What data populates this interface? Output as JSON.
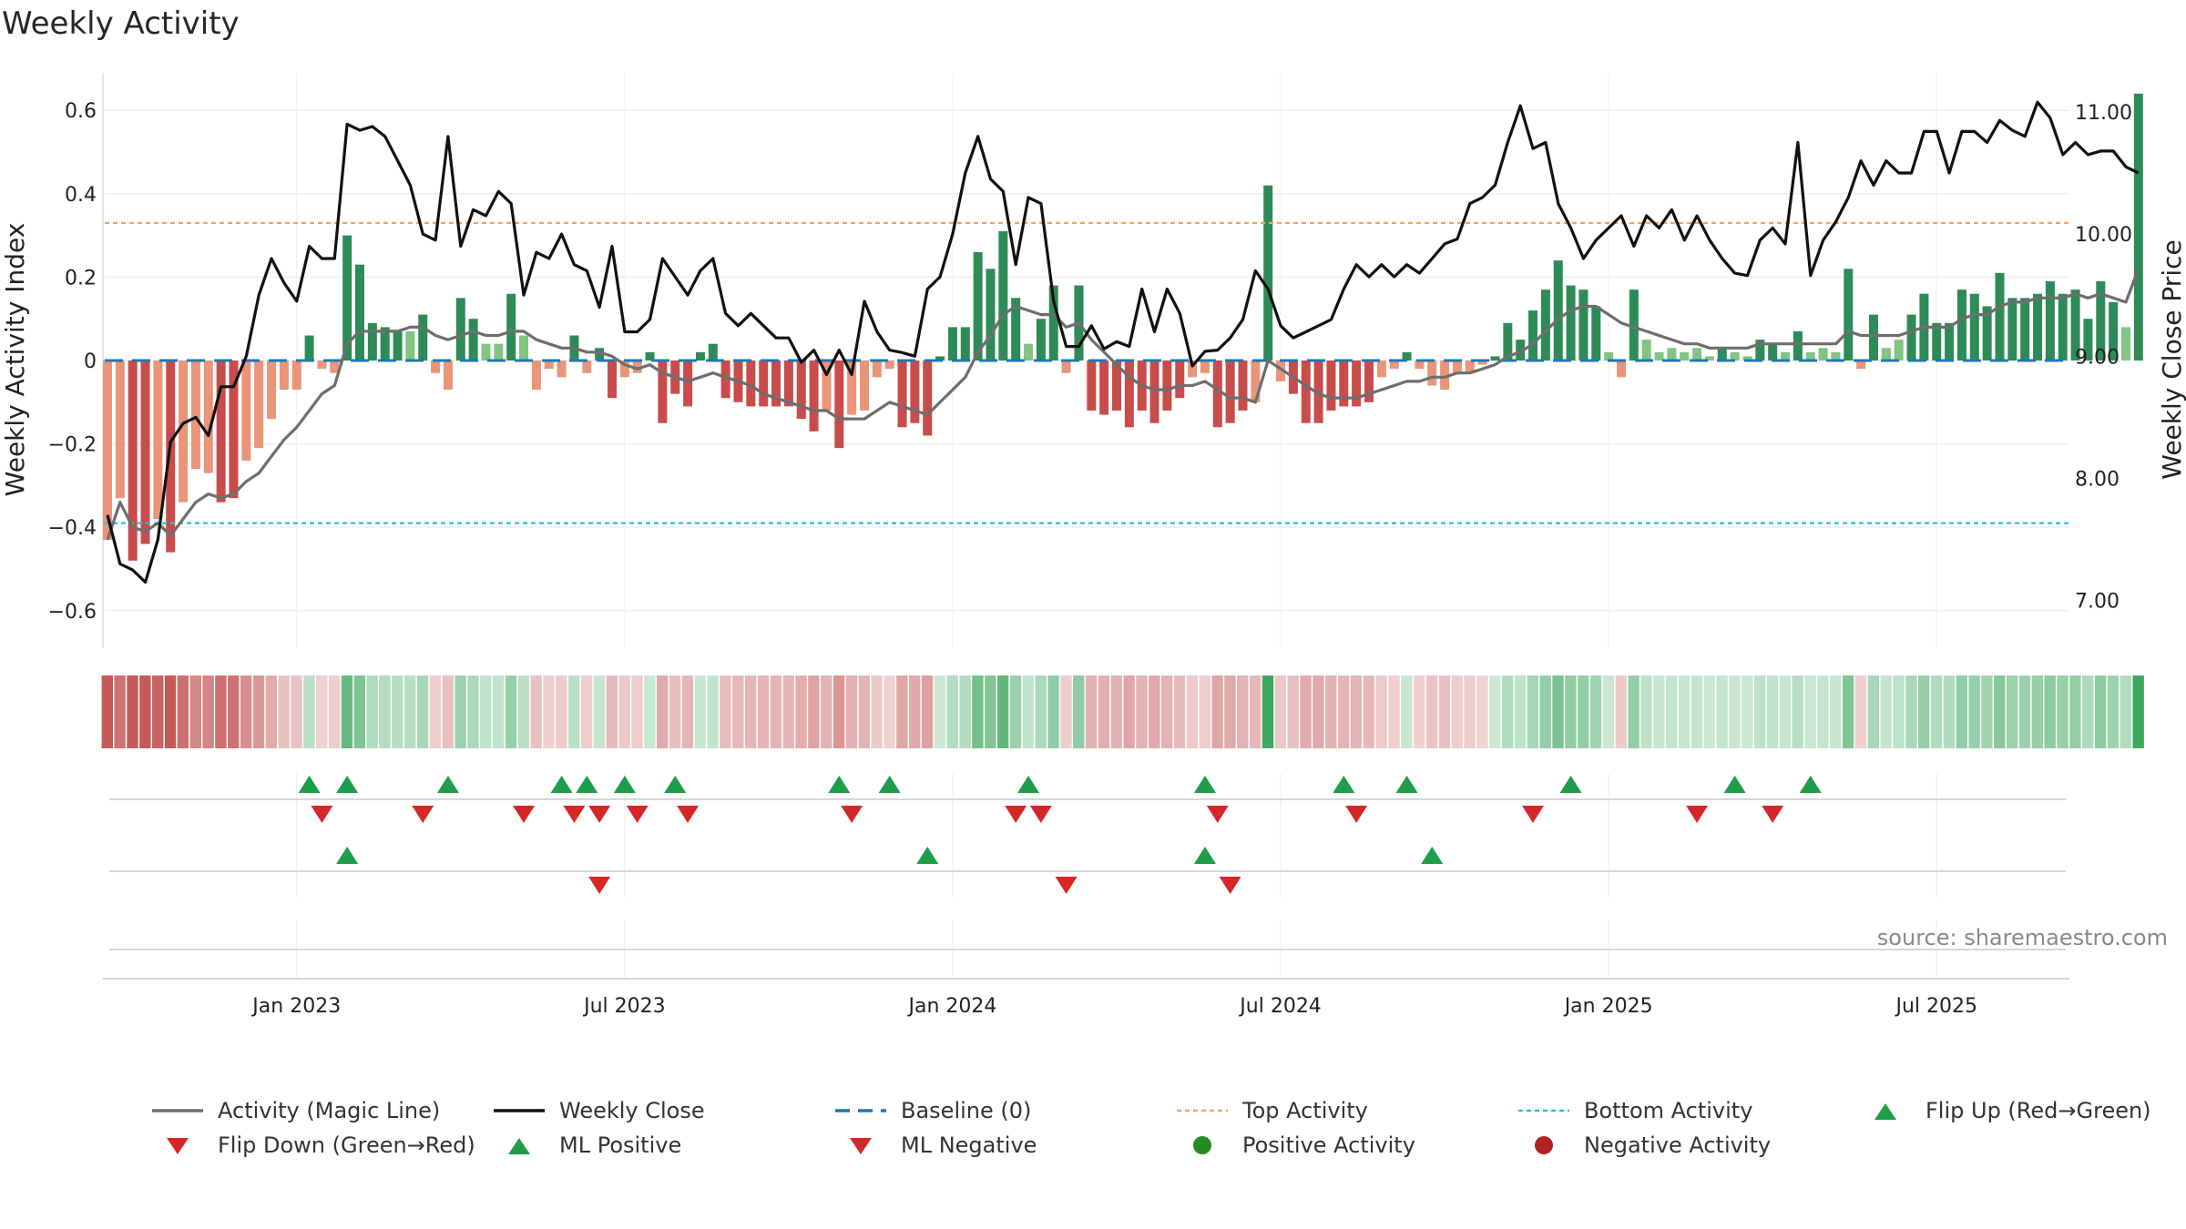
{
  "title": "Weekly Activity",
  "source": "source: sharemaestro.com",
  "colors": {
    "dark_green": "#2e8b57",
    "light_green": "#82c482",
    "dark_red": "#c84c4c",
    "light_red": "#e8957a",
    "magic_line": "#6e6e6e",
    "close_line": "#111111",
    "baseline": "#1f77b4",
    "top": "#f4a460",
    "bottom": "#22c5d2",
    "marker_up": "#1e9e4a",
    "marker_down": "#d62728",
    "pos_dot": "#228b22",
    "neg_dot": "#b22222"
  },
  "chart_data": {
    "type": "bar",
    "title": "Weekly Activity",
    "ylabel": "Weekly Activity Index",
    "y2label": "Weekly Close Price",
    "ylim": [
      -0.69,
      0.69
    ],
    "y2lim": [
      6.61,
      11.32
    ],
    "yticks": [
      "0.6",
      "0.4",
      "0.2",
      "0",
      "−0.2",
      "−0.4",
      "−0.6"
    ],
    "yticks_values": [
      0.6,
      0.4,
      0.2,
      0,
      -0.2,
      -0.4,
      -0.6
    ],
    "y2ticks": [
      "11.00",
      "10.00",
      "9.00",
      "8.00",
      "7.00"
    ],
    "y2ticks_values": [
      11,
      10,
      9,
      8,
      7
    ],
    "xticks": [
      "Jan 2023",
      "Jul 2023",
      "Jan 2024",
      "Jul 2024",
      "Jan 2025",
      "Jul 2025"
    ],
    "xticks_week_index": [
      15,
      41,
      67,
      93,
      119,
      145
    ],
    "top_activity": 0.33,
    "bottom_activity": -0.39,
    "baseline": 0,
    "activity": [
      -0.43,
      -0.33,
      -0.48,
      -0.44,
      -0.38,
      -0.46,
      -0.34,
      -0.26,
      -0.27,
      -0.34,
      -0.33,
      -0.24,
      -0.21,
      -0.14,
      -0.07,
      -0.07,
      0.06,
      -0.02,
      -0.03,
      0.3,
      0.23,
      0.09,
      0.08,
      0.07,
      0.07,
      0.11,
      -0.03,
      -0.07,
      0.15,
      0.1,
      0.04,
      0.04,
      0.16,
      0.06,
      -0.07,
      -0.02,
      -0.04,
      0.06,
      -0.03,
      0.03,
      -0.09,
      -0.04,
      -0.03,
      0.02,
      -0.15,
      -0.08,
      -0.11,
      0.02,
      0.04,
      -0.09,
      -0.1,
      -0.11,
      -0.11,
      -0.11,
      -0.11,
      -0.14,
      -0.17,
      -0.12,
      -0.21,
      -0.13,
      -0.12,
      -0.04,
      -0.02,
      -0.16,
      -0.15,
      -0.18,
      0.01,
      0.08,
      0.08,
      0.26,
      0.22,
      0.31,
      0.15,
      0.04,
      0.1,
      0.18,
      -0.03,
      0.18,
      -0.12,
      -0.13,
      -0.12,
      -0.16,
      -0.12,
      -0.15,
      -0.12,
      -0.09,
      -0.04,
      -0.03,
      -0.16,
      -0.15,
      -0.12,
      -0.1,
      0.42,
      -0.05,
      -0.08,
      -0.15,
      -0.15,
      -0.12,
      -0.11,
      -0.11,
      -0.1,
      -0.04,
      -0.02,
      0.02,
      -0.02,
      -0.06,
      -0.07,
      -0.03,
      -0.03,
      -0.01,
      0.01,
      0.09,
      0.05,
      0.12,
      0.17,
      0.24,
      0.18,
      0.17,
      0.13,
      0.02,
      -0.04,
      0.17,
      0.05,
      0.02,
      0.03,
      0.02,
      0.03,
      0.01,
      0.03,
      0.02,
      0.01,
      0.05,
      0.04,
      0.02,
      0.07,
      0.02,
      0.03,
      0.02,
      0.22,
      -0.02,
      0.11,
      0.03,
      0.05,
      0.11,
      0.16,
      0.09,
      0.09,
      0.17,
      0.16,
      0.13,
      0.21,
      0.15,
      0.15,
      0.16,
      0.19,
      0.16,
      0.17,
      0.1,
      0.19,
      0.14,
      0.08,
      0.64
    ],
    "magic_line": [
      -0.43,
      -0.34,
      -0.4,
      -0.41,
      -0.39,
      -0.42,
      -0.38,
      -0.34,
      -0.32,
      -0.33,
      -0.32,
      -0.29,
      -0.27,
      -0.23,
      -0.19,
      -0.16,
      -0.12,
      -0.08,
      -0.06,
      0.04,
      0.07,
      0.07,
      0.07,
      0.07,
      0.08,
      0.08,
      0.06,
      0.05,
      0.06,
      0.07,
      0.06,
      0.06,
      0.07,
      0.07,
      0.05,
      0.04,
      0.03,
      0.03,
      0.02,
      0.02,
      0.01,
      -0.01,
      -0.02,
      -0.01,
      -0.03,
      -0.04,
      -0.05,
      -0.04,
      -0.03,
      -0.04,
      -0.05,
      -0.06,
      -0.08,
      -0.09,
      -0.1,
      -0.11,
      -0.12,
      -0.12,
      -0.14,
      -0.14,
      -0.14,
      -0.12,
      -0.1,
      -0.11,
      -0.12,
      -0.13,
      -0.1,
      -0.07,
      -0.04,
      0.02,
      0.06,
      0.11,
      0.13,
      0.12,
      0.11,
      0.11,
      0.08,
      0.09,
      0.05,
      0.02,
      -0.01,
      -0.04,
      -0.06,
      -0.07,
      -0.07,
      -0.06,
      -0.06,
      -0.05,
      -0.07,
      -0.09,
      -0.09,
      -0.1,
      0.0,
      -0.02,
      -0.04,
      -0.06,
      -0.08,
      -0.09,
      -0.09,
      -0.09,
      -0.08,
      -0.07,
      -0.06,
      -0.05,
      -0.05,
      -0.04,
      -0.04,
      -0.03,
      -0.03,
      -0.02,
      -0.01,
      0.01,
      0.02,
      0.04,
      0.07,
      0.1,
      0.12,
      0.13,
      0.13,
      0.11,
      0.09,
      0.08,
      0.07,
      0.06,
      0.05,
      0.04,
      0.04,
      0.03,
      0.03,
      0.03,
      0.03,
      0.04,
      0.04,
      0.04,
      0.04,
      0.04,
      0.04,
      0.04,
      0.07,
      0.06,
      0.06,
      0.06,
      0.06,
      0.07,
      0.08,
      0.08,
      0.08,
      0.1,
      0.11,
      0.11,
      0.13,
      0.14,
      0.14,
      0.15,
      0.15,
      0.15,
      0.16,
      0.15,
      0.16,
      0.15,
      0.14,
      0.22
    ],
    "weekly_close": [
      7.7,
      7.3,
      7.25,
      7.15,
      7.5,
      8.3,
      8.45,
      8.5,
      8.35,
      8.75,
      8.75,
      9.0,
      9.5,
      9.8,
      9.6,
      9.45,
      9.9,
      9.8,
      9.8,
      10.9,
      10.85,
      10.88,
      10.8,
      10.6,
      10.4,
      10.0,
      9.95,
      10.8,
      9.9,
      10.2,
      10.15,
      10.35,
      10.25,
      9.5,
      9.85,
      9.8,
      10.0,
      9.75,
      9.7,
      9.4,
      9.9,
      9.2,
      9.2,
      9.3,
      9.8,
      9.65,
      9.5,
      9.7,
      9.8,
      9.35,
      9.25,
      9.35,
      9.25,
      9.15,
      9.15,
      8.95,
      9.05,
      8.85,
      9.05,
      8.85,
      9.45,
      9.2,
      9.05,
      9.03,
      9.0,
      9.55,
      9.65,
      10.0,
      10.5,
      10.8,
      10.45,
      10.35,
      9.75,
      10.3,
      10.25,
      9.45,
      9.08,
      9.08,
      9.25,
      9.06,
      9.12,
      9.08,
      9.55,
      9.2,
      9.55,
      9.35,
      8.92,
      9.04,
      9.05,
      9.15,
      9.3,
      9.7,
      9.55,
      9.25,
      9.15,
      9.2,
      9.25,
      9.3,
      9.55,
      9.75,
      9.65,
      9.75,
      9.65,
      9.75,
      9.68,
      9.8,
      9.92,
      9.96,
      10.25,
      10.3,
      10.4,
      10.75,
      11.05,
      10.7,
      10.75,
      10.25,
      10.05,
      9.8,
      9.95,
      10.05,
      10.15,
      9.9,
      10.15,
      10.05,
      10.2,
      9.95,
      10.15,
      9.95,
      9.8,
      9.68,
      9.66,
      9.95,
      10.05,
      9.92,
      10.75,
      9.66,
      9.95,
      10.1,
      10.3,
      10.6,
      10.4,
      10.6,
      10.5,
      10.5,
      10.84,
      10.84,
      10.5,
      10.84,
      10.84,
      10.75,
      10.93,
      10.85,
      10.8,
      11.08,
      10.95,
      10.65,
      10.75,
      10.65,
      10.68,
      10.68,
      10.55,
      10.5
    ],
    "heat_strip": "per-week shading by activity sign and magnitude",
    "rows": [
      {
        "up": [
          16,
          19,
          27,
          36,
          38,
          41,
          45,
          58,
          62,
          73,
          87,
          98,
          103,
          116,
          129,
          135
        ],
        "down": [
          17,
          25,
          33,
          37,
          39,
          42,
          46,
          59,
          72,
          74,
          88,
          99,
          113,
          126,
          132
        ]
      },
      {
        "up": [
          19,
          65,
          87,
          105
        ],
        "down": [
          39,
          76,
          89
        ]
      },
      {
        "up": [],
        "down": []
      }
    ],
    "legend": [
      {
        "label": "Activity (Magic Line)",
        "kind": "line",
        "colorKey": "magic_line"
      },
      {
        "label": "Weekly Close",
        "kind": "line",
        "colorKey": "close_line"
      },
      {
        "label": "Baseline (0)",
        "kind": "dash",
        "colorKey": "baseline"
      },
      {
        "label": "Top Activity",
        "kind": "dot-line",
        "colorKey": "top"
      },
      {
        "label": "Bottom Activity",
        "kind": "dot-line",
        "colorKey": "bottom"
      },
      {
        "label": "Flip Up (Red→Green)",
        "kind": "tri-up",
        "colorKey": "marker_up"
      },
      {
        "label": "Flip Down (Green→Red)",
        "kind": "tri-down",
        "colorKey": "marker_down"
      },
      {
        "label": "ML Positive",
        "kind": "tri-up",
        "colorKey": "marker_up"
      },
      {
        "label": "ML Negative",
        "kind": "tri-down",
        "colorKey": "marker_down"
      },
      {
        "label": "Positive Activity",
        "kind": "dot",
        "colorKey": "pos_dot"
      },
      {
        "label": "Negative Activity",
        "kind": "dot",
        "colorKey": "neg_dot"
      }
    ]
  }
}
